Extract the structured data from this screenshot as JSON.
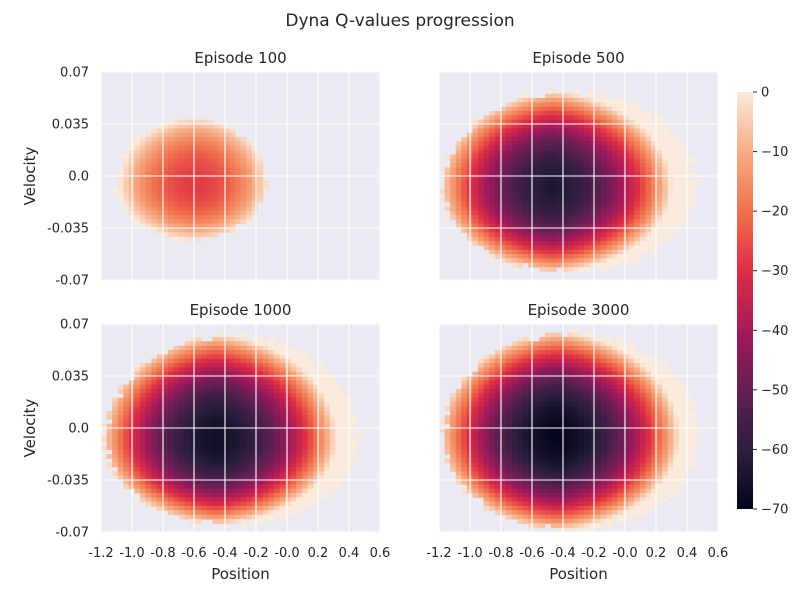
{
  "chart_data": {
    "type": "heatmap",
    "title": "Dyna Q-values progression",
    "xlabel": "Position",
    "ylabel": "Velocity",
    "xlim": [
      -1.2,
      0.6
    ],
    "ylim": [
      -0.07,
      0.07
    ],
    "x_ticks": [
      "-1.2",
      "-1.0",
      "-0.8",
      "-0.6",
      "-0.4",
      "-0.2",
      "-0.0",
      "0.2",
      "0.4",
      "0.6"
    ],
    "y_ticks": [
      "0.07",
      "0.035",
      "0.0",
      "-0.035",
      "-0.07"
    ],
    "grid": true,
    "colormap": "rocket",
    "colorbar": {
      "range": [
        -70,
        0
      ],
      "ticks": [
        "0",
        "−10",
        "−20",
        "−30",
        "−40",
        "−50",
        "−60",
        "−70"
      ]
    },
    "panels": [
      {
        "title": "Episode 100",
        "extent": {
          "x0": -1.12,
          "x1": -0.12,
          "v_top": 0.04,
          "v_bot": -0.044,
          "center_x": -0.56,
          "center_v": -0.006
        },
        "min_value": -28
      },
      {
        "title": "Episode 500",
        "extent": {
          "x0": -1.2,
          "x1": 0.48,
          "v_top": 0.058,
          "v_bot": -0.066,
          "center_x": -0.58,
          "center_v": -0.008
        },
        "min_value": -64
      },
      {
        "title": "Episode 1000",
        "extent": {
          "x0": -1.2,
          "x1": 0.48,
          "v_top": 0.064,
          "v_bot": -0.066,
          "center_x": -0.56,
          "center_v": -0.008
        },
        "min_value": -67
      },
      {
        "title": "Episode 3000",
        "extent": {
          "x0": -1.2,
          "x1": 0.5,
          "v_top": 0.066,
          "v_bot": -0.07,
          "center_x": -0.54,
          "center_v": -0.006
        },
        "min_value": -70
      }
    ]
  }
}
